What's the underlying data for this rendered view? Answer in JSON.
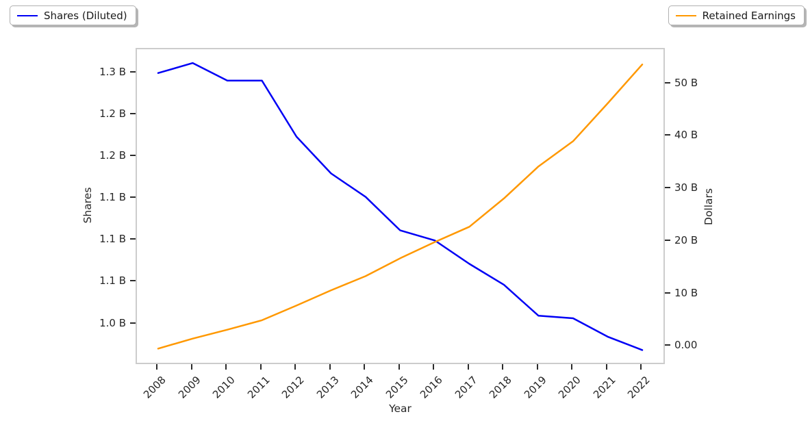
{
  "legend_left": {
    "label": "Shares (Diluted)"
  },
  "legend_right": {
    "label": "Retained Earnings"
  },
  "chart_data": {
    "type": "line",
    "title": "",
    "xlabel": "Year",
    "ylabel_left": "Shares",
    "ylabel_right": "Dollars",
    "grid": false,
    "x": [
      2008,
      2009,
      2010,
      2011,
      2012,
      2013,
      2014,
      2015,
      2016,
      2017,
      2018,
      2019,
      2020,
      2021,
      2022
    ],
    "series": [
      {
        "name": "Shares (Diluted)",
        "axis": "left",
        "color": "#0000f5",
        "units": "billions of shares",
        "values": [
          1.3,
          1.312,
          1.291,
          1.291,
          1.224,
          1.18,
          1.152,
          1.112,
          1.1,
          1.072,
          1.047,
          1.01,
          1.007,
          0.985,
          0.969
        ]
      },
      {
        "name": "Retained Earnings",
        "axis": "right",
        "color": "#ff9800",
        "units": "billions of dollars",
        "values": [
          -0.4,
          1.5,
          3.2,
          5.0,
          7.8,
          10.7,
          13.4,
          16.8,
          19.9,
          22.8,
          28.2,
          34.3,
          39.1,
          46.3,
          53.7
        ]
      }
    ],
    "ylim_left": [
      0.9538,
      1.3284
    ],
    "ylim_right": [
      -3.1,
      56.6
    ],
    "yticks_left": {
      "values": [
        1.0,
        1.05,
        1.1,
        1.15,
        1.2,
        1.25,
        1.3
      ],
      "labels": [
        "1.0 B",
        "1.1 B",
        "1.1 B",
        "1.1 B",
        "1.2 B",
        "1.2 B",
        "1.3 B"
      ]
    },
    "yticks_right": {
      "values": [
        0,
        10,
        20,
        30,
        40,
        50
      ],
      "labels": [
        "0.00",
        "10 B",
        "20 B",
        "30 B",
        "40 B",
        "50 B"
      ]
    },
    "legend_positions": {
      "shares": "upper left",
      "retained_earnings": "upper right"
    }
  }
}
